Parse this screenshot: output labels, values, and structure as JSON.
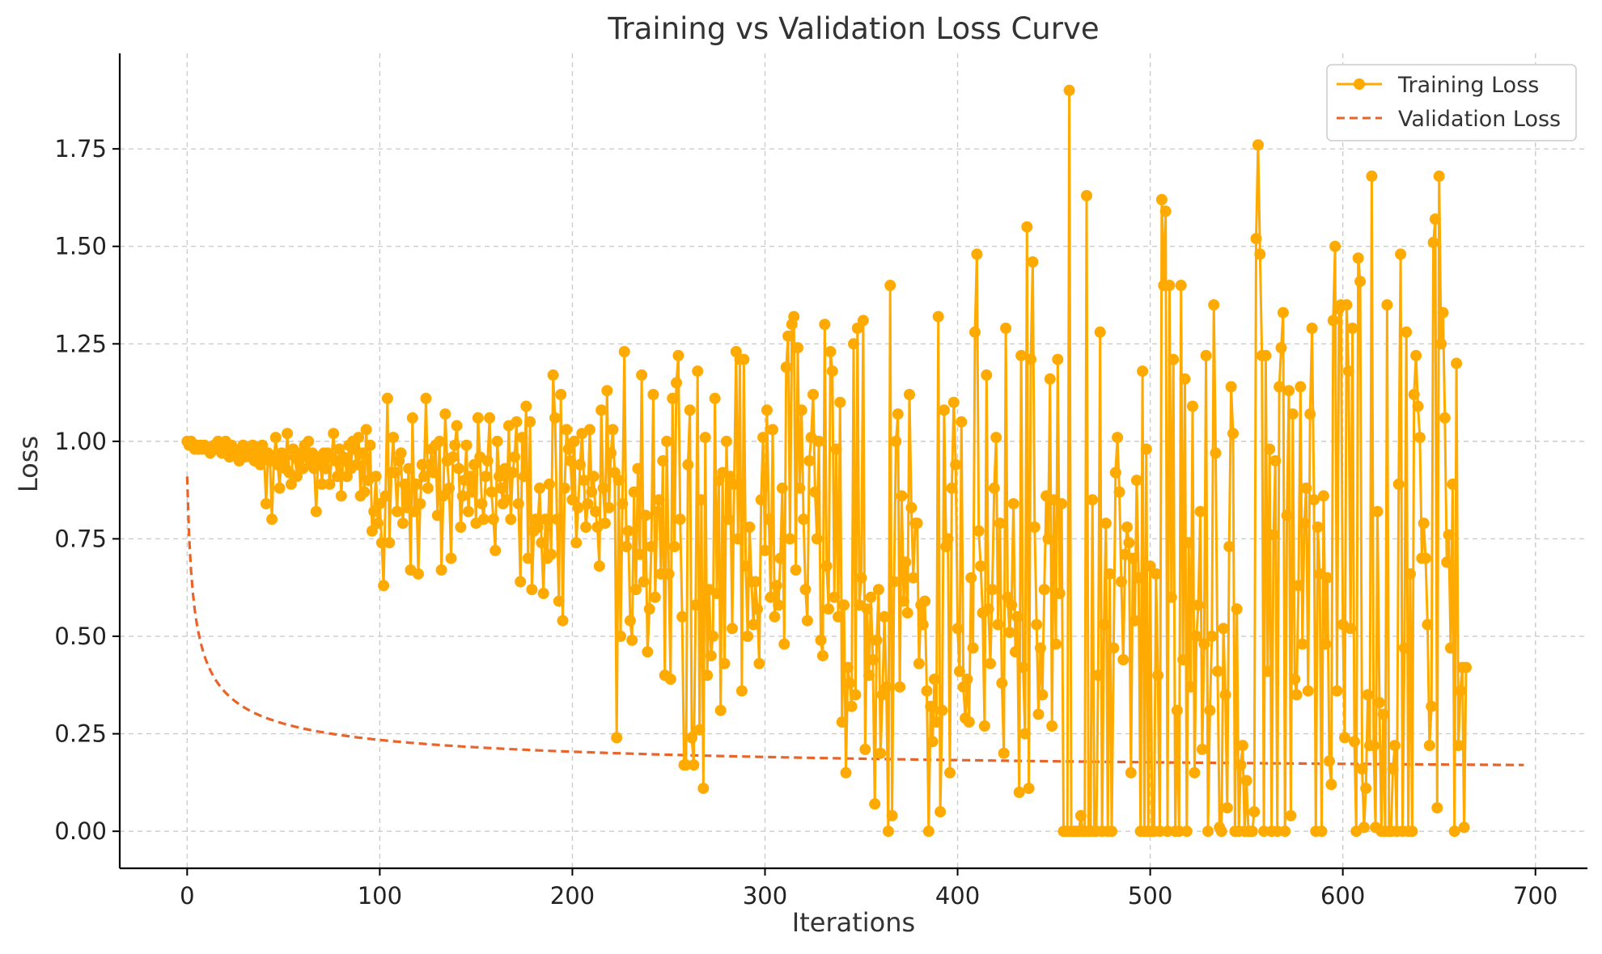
{
  "chart_data": {
    "type": "line",
    "title": "Training vs Validation Loss Curve",
    "xlabel": "Iterations",
    "ylabel": "Loss",
    "xlim": [
      -35,
      727
    ],
    "ylim": [
      -0.095,
      1.995
    ],
    "x_ticks": [
      0,
      100,
      200,
      300,
      400,
      500,
      600,
      700
    ],
    "y_ticks": [
      0.0,
      0.25,
      0.5,
      0.75,
      1.0,
      1.25,
      1.5,
      1.75
    ],
    "x_tick_labels": [
      "0",
      "100",
      "200",
      "300",
      "400",
      "500",
      "600",
      "700"
    ],
    "y_tick_labels": [
      "0.00",
      "0.25",
      "0.50",
      "0.75",
      "1.00",
      "1.25",
      "1.50",
      "1.75"
    ],
    "grid": true,
    "legend_position": "top-right",
    "colors": {
      "training": "#FFAA00",
      "validation": "#E8642A"
    },
    "series": [
      {
        "name": "Training Loss",
        "style": "solid-with-markers",
        "x_start": 0,
        "x_step": 1,
        "values": [
          1.0,
          0.99,
          1.0,
          0.99,
          0.98,
          0.99,
          0.98,
          0.99,
          0.98,
          0.99,
          0.98,
          0.98,
          0.97,
          0.98,
          0.99,
          0.98,
          1.0,
          0.99,
          0.97,
          0.99,
          1.0,
          0.98,
          0.96,
          0.99,
          0.98,
          0.97,
          0.96,
          0.95,
          0.98,
          0.99,
          0.96,
          0.97,
          0.98,
          0.96,
          0.99,
          0.95,
          0.97,
          0.98,
          0.94,
          0.99,
          0.96,
          0.84,
          0.97,
          0.95,
          0.8,
          0.95,
          1.01,
          0.94,
          0.88,
          0.97,
          0.95,
          0.93,
          1.02,
          0.92,
          0.89,
          0.98,
          0.96,
          0.91,
          0.95,
          0.97,
          0.93,
          0.99,
          0.96,
          1.0,
          0.94,
          0.97,
          0.93,
          0.82,
          0.96,
          0.95,
          0.89,
          0.97,
          0.93,
          0.97,
          0.89,
          0.96,
          1.02,
          0.95,
          0.91,
          0.98,
          0.86,
          0.96,
          0.95,
          0.91,
          0.99,
          0.93,
          1.0,
          0.98,
          0.94,
          1.01,
          0.86,
          0.97,
          0.87,
          1.03,
          0.9,
          0.99,
          0.77,
          0.82,
          0.91,
          0.79,
          0.84,
          0.74,
          0.63,
          0.86,
          1.11,
          0.74,
          0.92,
          1.01,
          0.92,
          0.82,
          0.95,
          0.97,
          0.79,
          0.89,
          0.83,
          0.93,
          0.67,
          1.06,
          0.82,
          0.89,
          0.66,
          0.84,
          0.94,
          0.91,
          1.11,
          0.88,
          0.94,
          0.98,
          0.92,
          0.99,
          0.81,
          1.0,
          0.67,
          0.86,
          1.07,
          0.95,
          0.88,
          0.7,
          0.96,
          0.99,
          1.04,
          0.93,
          0.78,
          0.86,
          0.9,
          0.99,
          0.82,
          0.91,
          0.87,
          0.94,
          0.79,
          1.06,
          0.96,
          0.84,
          0.8,
          0.91,
          0.95,
          1.06,
          0.87,
          0.8,
          0.72,
          1.0,
          0.91,
          0.88,
          0.84,
          0.93,
          0.85,
          1.04,
          0.8,
          0.92,
          0.96,
          1.05,
          0.84,
          0.64,
          1.01,
          0.91,
          1.09,
          0.7,
          1.05,
          0.62,
          0.77,
          0.8,
          0.78,
          0.88,
          0.74,
          0.61,
          0.8,
          0.7,
          0.89,
          0.71,
          1.17,
          1.06,
          0.8,
          0.59,
          1.12,
          0.54,
          0.88,
          1.03,
          0.98,
          0.95,
          0.85,
          1.0,
          0.74,
          0.83,
          0.94,
          1.02,
          0.9,
          0.78,
          0.84,
          1.03,
          0.87,
          0.91,
          0.82,
          0.78,
          0.68,
          1.08,
          0.88,
          0.79,
          1.13,
          0.83,
          0.97,
          1.03,
          0.92,
          0.24,
          0.9,
          0.5,
          0.84,
          1.23,
          0.73,
          0.77,
          0.54,
          0.49,
          0.87,
          0.62,
          0.93,
          0.71,
          1.17,
          0.64,
          0.81,
          0.46,
          0.57,
          0.73,
          1.12,
          0.6,
          0.82,
          0.85,
          0.66,
          0.95,
          0.4,
          1.0,
          0.66,
          0.39,
          1.11,
          0.73,
          1.15,
          1.22,
          0.8,
          0.55,
          0.17,
          0.17,
          0.94,
          1.08,
          0.24,
          0.17,
          0.58,
          1.18,
          0.26,
          0.85,
          0.11,
          1.01,
          0.4,
          0.62,
          0.45,
          0.5,
          1.11,
          0.61,
          0.9,
          0.31,
          0.92,
          0.43,
          1.0,
          0.8,
          0.91,
          0.52,
          0.89,
          1.23,
          0.75,
          1.21,
          0.36,
          1.21,
          0.68,
          0.5,
          0.78,
          0.64,
          0.53,
          0.64,
          0.57,
          0.43,
          0.85,
          1.01,
          0.72,
          1.08,
          0.8,
          0.6,
          1.03,
          0.55,
          0.63,
          0.58,
          0.7,
          0.88,
          0.48,
          1.19,
          1.27,
          0.75,
          1.3,
          1.32,
          0.67,
          1.24,
          0.88,
          1.08,
          0.8,
          0.62,
          0.54,
          0.95,
          1.01,
          1.12,
          0.87,
          0.75,
          1.0,
          0.49,
          0.45,
          1.3,
          0.68,
          0.57,
          1.23,
          1.18,
          0.6,
          0.98,
          0.55,
          1.1,
          0.28,
          0.58,
          0.15,
          0.42,
          0.38,
          0.32,
          1.25,
          0.35,
          1.29,
          0.58,
          0.65,
          1.31,
          0.21,
          0.57,
          0.4,
          0.6,
          0.44,
          0.07,
          0.49,
          0.62,
          0.2,
          0.35,
          0.55,
          0.37,
          0.0,
          1.4,
          0.04,
          0.64,
          1.0,
          1.07,
          0.37,
          0.86,
          0.59,
          0.69,
          0.56,
          1.12,
          0.83,
          0.65,
          0.79,
          0.79,
          0.43,
          0.58,
          0.53,
          0.59,
          0.36,
          0.0,
          0.32,
          0.23,
          0.39,
          0.28,
          1.32,
          0.05,
          0.31,
          1.08,
          0.73,
          0.75,
          0.15,
          0.88,
          1.1,
          0.94,
          0.52,
          0.41,
          1.05,
          0.37,
          0.29,
          0.39,
          0.28,
          0.65,
          0.47,
          1.28,
          1.48,
          0.77,
          0.68,
          0.56,
          0.27,
          1.17,
          0.57,
          0.43,
          0.62,
          0.88,
          1.01,
          0.53,
          0.79,
          0.38,
          0.2,
          1.29,
          0.6,
          0.51,
          0.58,
          0.84,
          0.46,
          0.55,
          0.1,
          1.22,
          0.42,
          0.25,
          1.55,
          0.11,
          1.21,
          1.46,
          0.78,
          0.53,
          0.3,
          0.47,
          0.35,
          0.62,
          0.86,
          0.75,
          1.16,
          0.27,
          0.85,
          0.48,
          1.21,
          0.61,
          0.84,
          0.0,
          0.0,
          0.0,
          1.9,
          0.0,
          0.0,
          0.0,
          0.0,
          0.0,
          0.04,
          0.0,
          0.0,
          1.63,
          0.0,
          0.0,
          0.85,
          0.0,
          0.0,
          0.4,
          1.28,
          0.0,
          0.53,
          0.79,
          0.0,
          0.66,
          0.0,
          0.47,
          0.92,
          1.01,
          0.87,
          0.64,
          0.44,
          0.71,
          0.78,
          0.74,
          0.15,
          0.7,
          0.54,
          0.9,
          0.65,
          0.0,
          1.18,
          0.0,
          0.98,
          0.0,
          0.68,
          0.0,
          0.0,
          0.66,
          0.4,
          0.0,
          1.62,
          1.4,
          1.59,
          0.0,
          1.4,
          0.6,
          1.21,
          0.0,
          0.31,
          0.0,
          1.4,
          0.44,
          1.16,
          0.0,
          0.74,
          0.37,
          1.09,
          0.15,
          0.5,
          0.58,
          0.82,
          0.21,
          0.48,
          1.22,
          0.0,
          0.31,
          0.5,
          1.35,
          0.97,
          0.41,
          0.01,
          0.0,
          0.52,
          0.35,
          0.06,
          0.73,
          1.14,
          1.02,
          0.0,
          0.57,
          0.0,
          0.17,
          0.22,
          0.0,
          0.13,
          0.0,
          0.0,
          0.0,
          0.05,
          1.52,
          1.76,
          1.48,
          1.22,
          0.0,
          1.22,
          0.41,
          0.98,
          0.0,
          0.76,
          0.95,
          0.0,
          1.14,
          1.24,
          1.33,
          0.0,
          0.81,
          1.13,
          0.04,
          1.07,
          0.39,
          0.35,
          0.63,
          1.14,
          0.48,
          0.79,
          0.88,
          0.36,
          1.07,
          1.29,
          0.85,
          0.0,
          0.78,
          0.66,
          0.0,
          0.86,
          0.48,
          0.65,
          0.18,
          0.12,
          1.31,
          1.5,
          0.36,
          1.34,
          1.35,
          0.53,
          0.24,
          1.35,
          1.18,
          0.52,
          1.29,
          0.23,
          0.0,
          1.47,
          1.41,
          0.16,
          0.01,
          0.11,
          0.35,
          0.22,
          1.68,
          0.22,
          0.01,
          0.82,
          0.33,
          0.0,
          0.3,
          0.0,
          1.35,
          0.0,
          0.0,
          0.16,
          0.22,
          0.0,
          0.89,
          1.48,
          0.0,
          0.47,
          1.28,
          0.0,
          0.66,
          0.0,
          1.12,
          1.22,
          1.09,
          1.01,
          0.7,
          0.79,
          0.7,
          0.53,
          0.22,
          0.32,
          1.51,
          1.57,
          0.06,
          1.68,
          1.25,
          1.33,
          1.06,
          0.69,
          0.76,
          0.47,
          0.89,
          0.0,
          1.2,
          0.22,
          0.36,
          0.42,
          0.01,
          0.42
        ]
      },
      {
        "name": "Validation Loss",
        "style": "dashed",
        "formula": "0.13 + 0.78 / sqrt(1 + 0.55 * x)",
        "x_start": 0,
        "x_end": 694
      }
    ]
  }
}
